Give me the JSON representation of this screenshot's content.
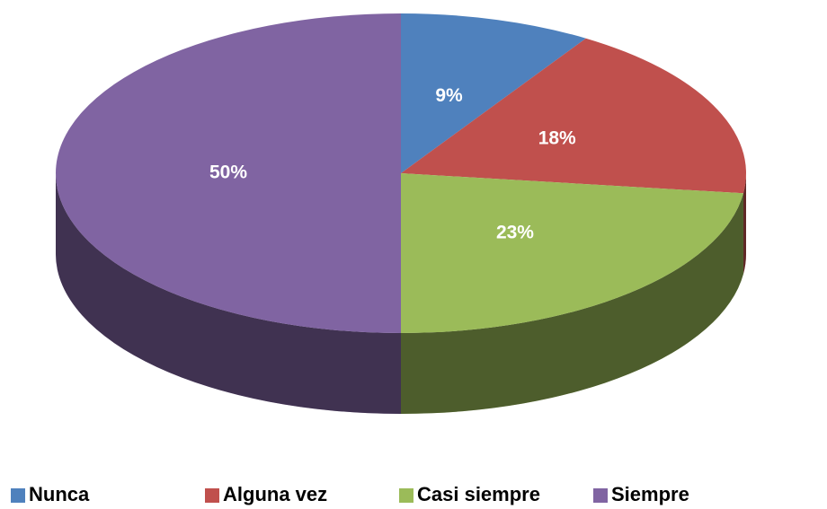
{
  "chart_data": {
    "type": "pie3d",
    "categories": [
      "Nunca",
      "Alguna vez",
      "Casi siempre",
      "Siempre"
    ],
    "values": [
      9,
      18,
      23,
      50
    ],
    "value_labels": [
      "9%",
      "18%",
      "23%",
      "50%"
    ],
    "colors": [
      "#4f81bd",
      "#c0504d",
      "#9bbb59",
      "#8064a2"
    ],
    "legend": "bottom"
  }
}
